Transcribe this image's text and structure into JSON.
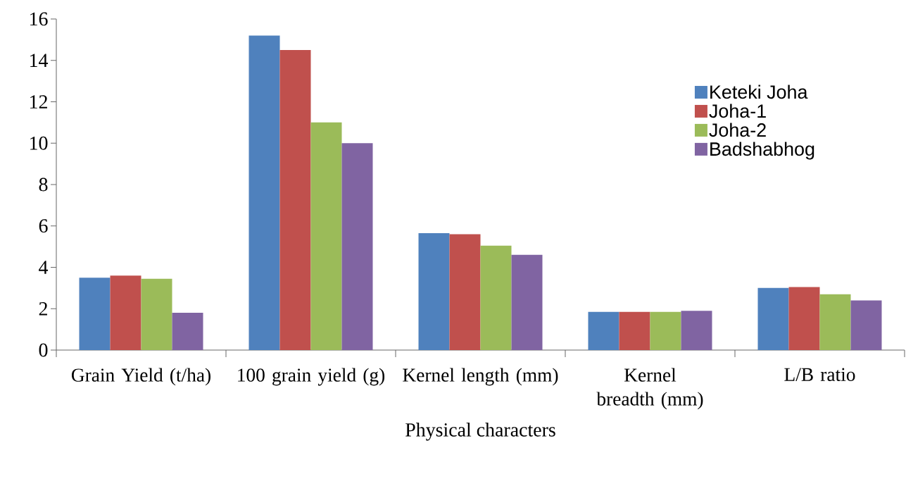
{
  "chart_data": {
    "type": "bar",
    "xlabel": "Physical characters",
    "categories": [
      "Grain Yield (t/ha)",
      "100 grain yield (g)",
      "Kernel length (mm)",
      "Kernel breadth (mm)",
      "L/B ratio"
    ],
    "series": [
      {
        "name": "Keteki Joha",
        "color": "#4f81bd",
        "values": [
          3.5,
          15.2,
          5.65,
          1.85,
          3.0
        ]
      },
      {
        "name": "Joha-1",
        "color": "#c0504d",
        "values": [
          3.6,
          14.5,
          5.6,
          1.85,
          3.05
        ]
      },
      {
        "name": "Joha-2",
        "color": "#9bbb59",
        "values": [
          3.45,
          11.0,
          5.05,
          1.85,
          2.7
        ]
      },
      {
        "name": "Badshabhog",
        "color": "#8064a2",
        "values": [
          1.8,
          10.0,
          4.6,
          1.9,
          2.4
        ]
      }
    ],
    "ylim": [
      0,
      16
    ],
    "yticks": [
      0,
      2,
      4,
      6,
      8,
      10,
      12,
      14,
      16
    ],
    "grid": false,
    "legend": "right"
  }
}
